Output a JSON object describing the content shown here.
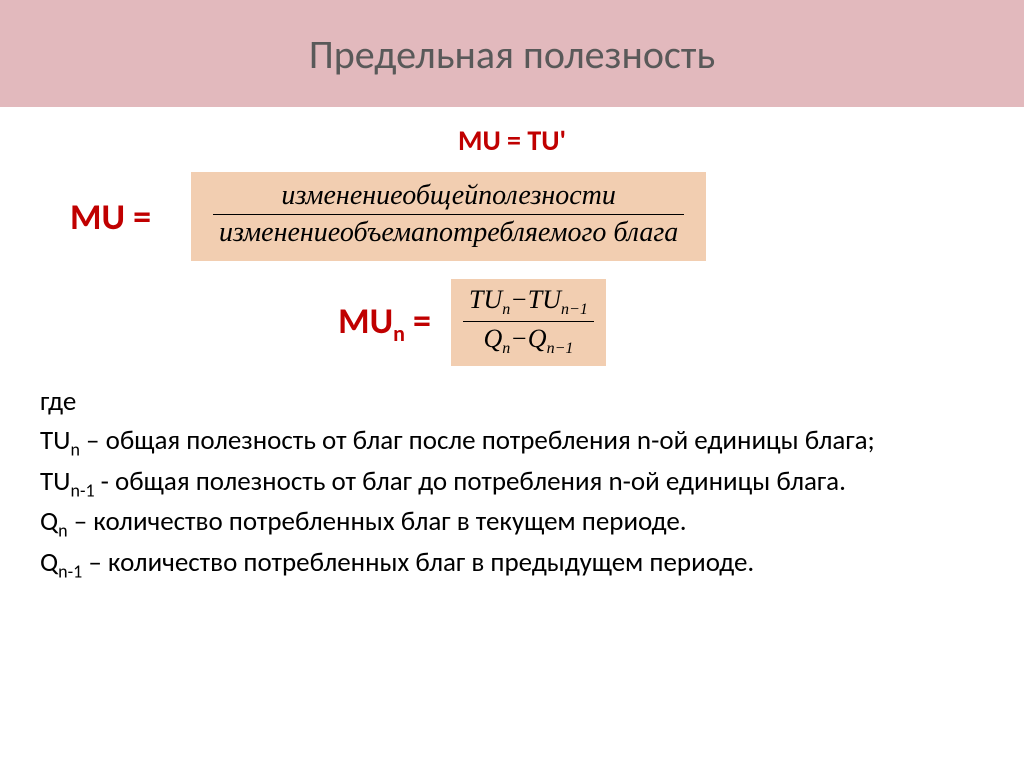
{
  "title": "Предельная полезность",
  "eq1": "MU = TU'",
  "eq2_lhs": "MU  =",
  "eq2_fraction": {
    "numerator": "изменениеобщейполезности",
    "denominator": "изменениеобъемапотребляемого блага"
  },
  "eq3_lhs_base": "MU",
  "eq3_lhs_sub": "n",
  "eq3_lhs_tail": "   =",
  "eq3_fraction": {
    "num_a": "TU",
    "num_a_sub": "n",
    "num_b": "TU",
    "num_b_sub": "n−1",
    "den_a": "Q",
    "den_a_sub": "n",
    "den_b": "Q",
    "den_b_sub": "n−1"
  },
  "defs": {
    "where": "где",
    "l1_a": "TU",
    "l1_sub": "n",
    "l1_b": " – общая полезность от благ после потребления n-ой единицы блага;",
    "l2_a": "TU",
    "l2_sub": "n-1",
    "l2_b": "  - общая полезность от благ до потребления n-ой единицы блага.",
    "l3_a": "Q",
    "l3_sub": "n",
    "l3_b": " – количество потребленных благ в текущем периоде.",
    "l4_a": "Q",
    "l4_sub": "n-1",
    "l4_b": " – количество потребленных благ в предыдущем периоде."
  },
  "colors": {
    "title_band": "#e2b9bd",
    "title_text": "#595959",
    "accent": "#c00000",
    "formula_bg": "#f2ceb1",
    "body_text": "#000000",
    "page_bg": "#ffffff"
  }
}
